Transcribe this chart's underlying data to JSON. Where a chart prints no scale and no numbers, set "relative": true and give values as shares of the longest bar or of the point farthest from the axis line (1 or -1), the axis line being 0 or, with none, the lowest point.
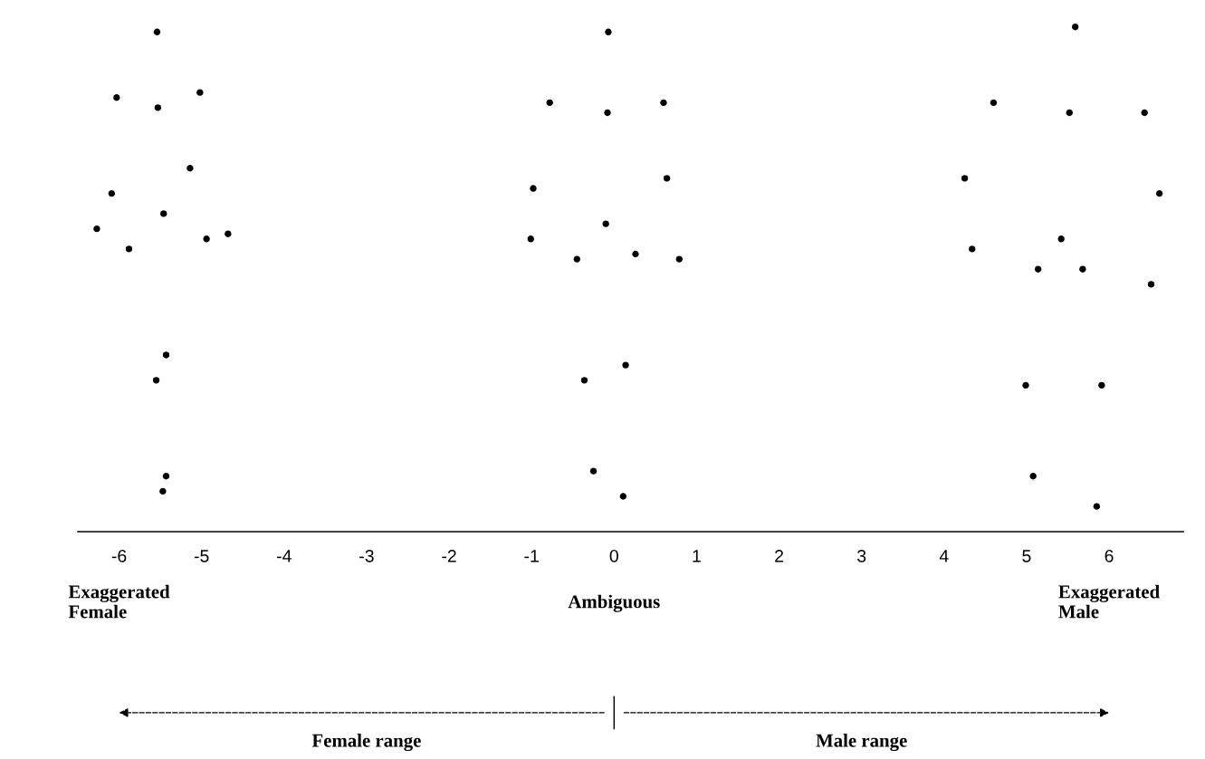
{
  "chart_data": {
    "type": "scatter",
    "relative": true,
    "x": [
      -5.54,
      -6.03,
      -5.53,
      -5.02,
      -5.14,
      -6.09,
      -5.46,
      -6.27,
      -5.88,
      -4.94,
      -4.68,
      -5.43,
      -5.55,
      -5.43,
      -5.47,
      -0.07,
      -0.78,
      -0.08,
      0.6,
      -0.98,
      0.64,
      -0.1,
      -1.01,
      -0.45,
      0.26,
      0.79,
      -0.36,
      0.14,
      -0.25,
      0.11,
      5.59,
      4.6,
      5.52,
      6.43,
      4.25,
      6.61,
      4.34,
      5.42,
      5.14,
      5.68,
      6.51,
      4.99,
      5.91,
      5.08,
      5.85
    ],
    "series": [
      {
        "color": "#000000",
        "values": [
          0.99,
          0.86,
          0.84,
          0.87,
          0.72,
          0.67,
          0.63,
          0.6,
          0.56,
          0.58,
          0.59,
          0.35,
          0.3,
          0.11,
          0.08,
          0.99,
          0.85,
          0.83,
          0.85,
          0.68,
          0.7,
          0.61,
          0.58,
          0.54,
          0.55,
          0.54,
          0.3,
          0.33,
          0.12,
          0.07,
          1.0,
          0.85,
          0.83,
          0.83,
          0.7,
          0.67,
          0.56,
          0.58,
          0.52,
          0.52,
          0.49,
          0.29,
          0.29,
          0.11,
          0.05
        ]
      }
    ],
    "xlim": [
      -6.5,
      6.9
    ],
    "xticks": [
      -6,
      -5,
      -4,
      -3,
      -2,
      -1,
      0,
      1,
      2,
      3,
      4,
      5,
      6
    ],
    "marker": "circle",
    "grid": false,
    "legend": false,
    "annotations": [
      "Exaggerated\nFemale",
      "Ambiguous",
      "Exaggerated\nMale",
      "Female range",
      "Male range"
    ]
  }
}
